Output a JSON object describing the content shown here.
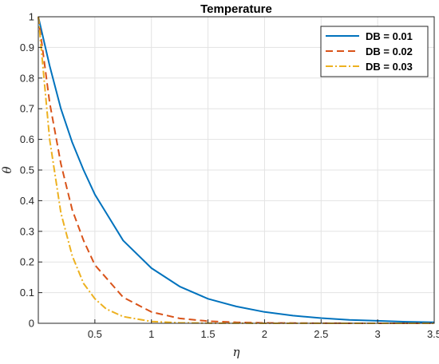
{
  "chart_data": {
    "type": "line",
    "title": "Temperature",
    "xlabel": "η",
    "ylabel": "θ",
    "xlim": [
      0,
      3.5
    ],
    "ylim": [
      0,
      1
    ],
    "xticks": [
      0.5,
      1,
      1.5,
      2,
      2.5,
      3,
      3.5
    ],
    "xtick_labels": [
      "0.5",
      "1",
      "1.5",
      "2",
      "2.5",
      "3",
      "3.5"
    ],
    "yticks": [
      0,
      0.1,
      0.2,
      0.3,
      0.4,
      0.5,
      0.6,
      0.7,
      0.8,
      0.9,
      1
    ],
    "ytick_labels": [
      "0",
      "0.1",
      "0.2",
      "0.3",
      "0.4",
      "0.5",
      "0.6",
      "0.7",
      "0.8",
      "0.9",
      "1"
    ],
    "grid": true,
    "legend_position": "top-right",
    "series": [
      {
        "name": "DB = 0.01",
        "color": "#0072BD",
        "style": "solid",
        "x": [
          0,
          0.1,
          0.2,
          0.3,
          0.4,
          0.5,
          0.75,
          1,
          1.25,
          1.5,
          1.75,
          2,
          2.25,
          2.5,
          2.75,
          3,
          3.25,
          3.5
        ],
        "y": [
          1,
          0.84,
          0.7,
          0.59,
          0.5,
          0.42,
          0.27,
          0.18,
          0.12,
          0.08,
          0.055,
          0.037,
          0.025,
          0.017,
          0.011,
          0.008,
          0.005,
          0.003
        ]
      },
      {
        "name": "DB = 0.02",
        "color": "#D95319",
        "style": "dashed",
        "x": [
          0,
          0.1,
          0.2,
          0.3,
          0.4,
          0.5,
          0.75,
          1,
          1.25,
          1.5,
          1.75,
          2,
          2.5,
          3,
          3.5
        ],
        "y": [
          1,
          0.72,
          0.52,
          0.37,
          0.27,
          0.19,
          0.085,
          0.037,
          0.016,
          0.007,
          0.003,
          0.0014,
          0.0003,
          0.0001,
          0
        ]
      },
      {
        "name": "DB = 0.03",
        "color": "#EDB120",
        "style": "dashdot",
        "x": [
          0,
          0.1,
          0.2,
          0.3,
          0.4,
          0.5,
          0.6,
          0.75,
          1,
          1.25,
          1.5,
          2,
          2.5,
          3,
          3.5
        ],
        "y": [
          1,
          0.6,
          0.36,
          0.22,
          0.13,
          0.08,
          0.047,
          0.022,
          0.006,
          0.0016,
          0.0004,
          0,
          0,
          0,
          0
        ]
      }
    ]
  }
}
